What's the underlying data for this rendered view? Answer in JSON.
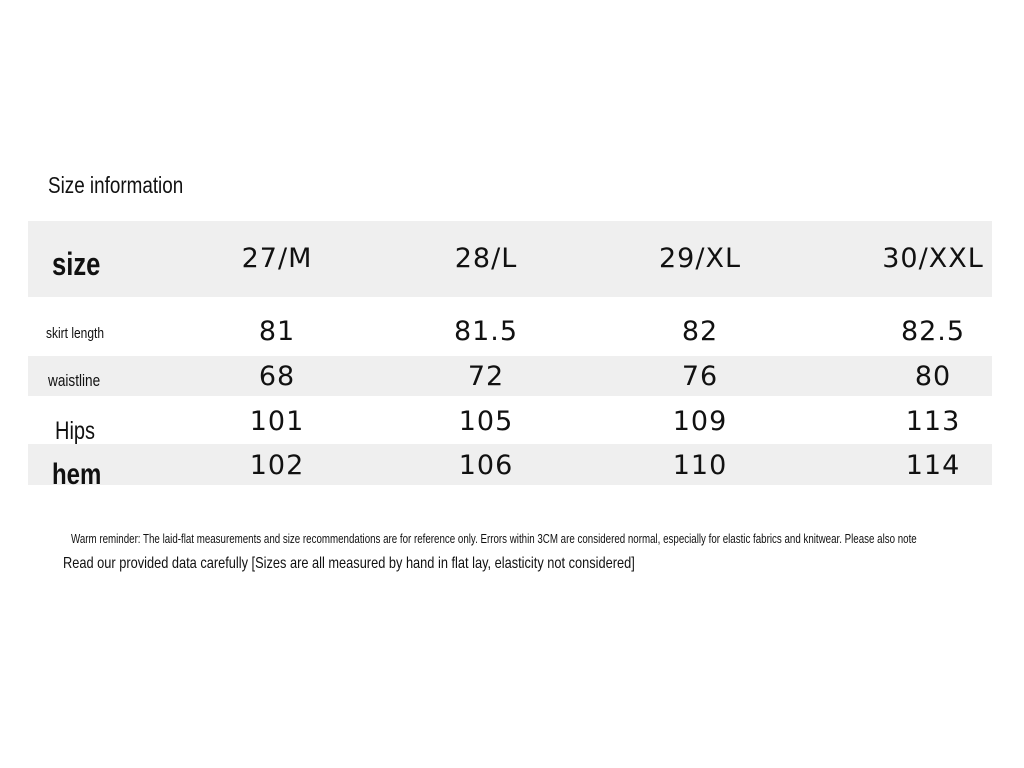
{
  "title": "Size information",
  "table": {
    "header": [
      "size",
      "27/M",
      "28/L",
      "29/XL",
      "30/XXL"
    ],
    "rows": [
      [
        "skirt length",
        81,
        81.5,
        82,
        82.5
      ],
      [
        "waistline",
        68,
        72,
        76,
        80
      ],
      [
        "Hips",
        101,
        105,
        109,
        113
      ],
      [
        "hem",
        102,
        106,
        110,
        114
      ]
    ]
  },
  "notes": [
    "Warm reminder: The laid-flat measurements and size recommendations are for reference only. Errors within 3CM are considered normal, especially for elastic fabrics and knitwear. Please also note",
    "Read our provided data carefully [Sizes are all measured by hand in flat lay, elasticity not considered]"
  ]
}
